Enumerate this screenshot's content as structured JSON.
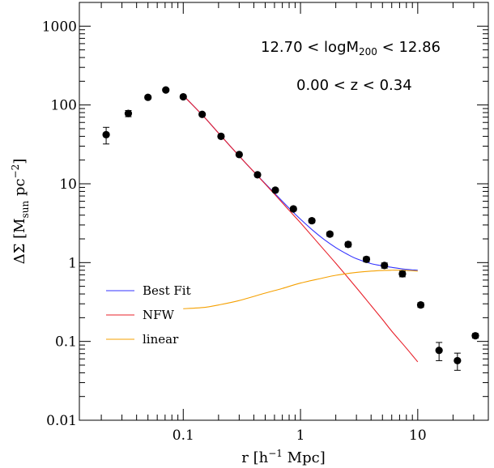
{
  "chart_data": {
    "type": "scatter",
    "x_scale": "log",
    "y_scale": "log",
    "xlim": [
      0.013,
      40
    ],
    "ylim": [
      0.01,
      2000
    ],
    "x_ticks": [
      {
        "value": 0.1,
        "label": "0.1"
      },
      {
        "value": 1,
        "label": "1"
      },
      {
        "value": 10,
        "label": "10"
      }
    ],
    "y_ticks": [
      {
        "value": 0.01,
        "label": "0.01"
      },
      {
        "value": 0.1,
        "label": "0.1"
      },
      {
        "value": 1,
        "label": "1"
      },
      {
        "value": 10,
        "label": "10"
      },
      {
        "value": 100,
        "label": "100"
      },
      {
        "value": 1000,
        "label": "1000"
      }
    ],
    "xlabel": {
      "prefix": "r  [h",
      "sup": "−1",
      "suffix": " Mpc]"
    },
    "ylabel": {
      "prefix": "ΔΣ  [M",
      "sub": "sun",
      "mid": "  pc",
      "sup": "−2",
      "suffix": "]"
    },
    "annotations": [
      {
        "prefix": "12.70  <  logM",
        "sub": "200",
        "suffix": "  <  12.86"
      },
      {
        "text": "0.00  <  z  <  0.34"
      }
    ],
    "points": [
      {
        "x": 0.022,
        "y": 42,
        "err_lo": 10,
        "err_hi": 10
      },
      {
        "x": 0.034,
        "y": 78,
        "err_lo": 7,
        "err_hi": 7
      },
      {
        "x": 0.05,
        "y": 125,
        "err_lo": 6,
        "err_hi": 6
      },
      {
        "x": 0.071,
        "y": 155,
        "err_lo": 6,
        "err_hi": 6
      },
      {
        "x": 0.1,
        "y": 127,
        "err_lo": 5,
        "err_hi": 5
      },
      {
        "x": 0.145,
        "y": 76,
        "err_lo": 3,
        "err_hi": 3
      },
      {
        "x": 0.21,
        "y": 40,
        "err_lo": 2,
        "err_hi": 2
      },
      {
        "x": 0.3,
        "y": 23.5,
        "err_lo": 1,
        "err_hi": 1
      },
      {
        "x": 0.43,
        "y": 13,
        "err_lo": 0.6,
        "err_hi": 0.6
      },
      {
        "x": 0.61,
        "y": 8.3,
        "err_lo": 0.4,
        "err_hi": 0.4
      },
      {
        "x": 0.87,
        "y": 4.8,
        "err_lo": 0.25,
        "err_hi": 0.25
      },
      {
        "x": 1.25,
        "y": 3.4,
        "err_lo": 0.2,
        "err_hi": 0.2
      },
      {
        "x": 1.78,
        "y": 2.3,
        "err_lo": 0.15,
        "err_hi": 0.15
      },
      {
        "x": 2.55,
        "y": 1.7,
        "err_lo": 0.12,
        "err_hi": 0.12
      },
      {
        "x": 3.65,
        "y": 1.1,
        "err_lo": 0.08,
        "err_hi": 0.08
      },
      {
        "x": 5.2,
        "y": 0.92,
        "err_lo": 0.07,
        "err_hi": 0.07
      },
      {
        "x": 7.4,
        "y": 0.72,
        "err_lo": 0.06,
        "err_hi": 0.06
      },
      {
        "x": 10.6,
        "y": 0.29,
        "err_lo": 0.02,
        "err_hi": 0.02
      },
      {
        "x": 15.2,
        "y": 0.077,
        "err_lo": 0.02,
        "err_hi": 0.02
      },
      {
        "x": 21.8,
        "y": 0.057,
        "err_lo": 0.014,
        "err_hi": 0.014
      },
      {
        "x": 31.0,
        "y": 0.118,
        "err_lo": 0.008,
        "err_hi": 0.008
      }
    ],
    "series": [
      {
        "name": "Best Fit",
        "color": "#3333ff",
        "x": [
          0.1,
          0.15,
          0.2,
          0.3,
          0.4,
          0.6,
          0.8,
          1.0,
          1.3,
          1.6,
          2.0,
          2.5,
          3.0,
          4.0,
          5.0,
          6.0,
          8.0,
          10.0
        ],
        "y": [
          132,
          71,
          44,
          22.5,
          14.2,
          7.6,
          4.9,
          3.55,
          2.5,
          1.95,
          1.55,
          1.28,
          1.12,
          0.97,
          0.91,
          0.87,
          0.82,
          0.8
        ]
      },
      {
        "name": "NFW",
        "color": "#e8202a",
        "x": [
          0.1,
          0.15,
          0.2,
          0.3,
          0.4,
          0.6,
          0.8,
          1.0,
          1.5,
          2.0,
          3.0,
          4.0,
          5.0,
          6.0,
          8.0,
          10.0
        ],
        "y": [
          132,
          71,
          44,
          22.5,
          14.2,
          7.4,
          4.6,
          3.2,
          1.6,
          0.98,
          0.48,
          0.285,
          0.19,
          0.135,
          0.082,
          0.055
        ]
      },
      {
        "name": "linear",
        "color": "#f5a000",
        "x": [
          0.1,
          0.15,
          0.2,
          0.3,
          0.5,
          0.7,
          1.0,
          1.5,
          2.0,
          3.0,
          4.0,
          5.0,
          6.0,
          7.0,
          8.0,
          10.0
        ],
        "y": [
          0.26,
          0.27,
          0.29,
          0.33,
          0.41,
          0.47,
          0.55,
          0.63,
          0.69,
          0.75,
          0.78,
          0.795,
          0.8,
          0.8,
          0.795,
          0.78
        ]
      }
    ],
    "legend": {
      "position": "lower-left"
    }
  }
}
